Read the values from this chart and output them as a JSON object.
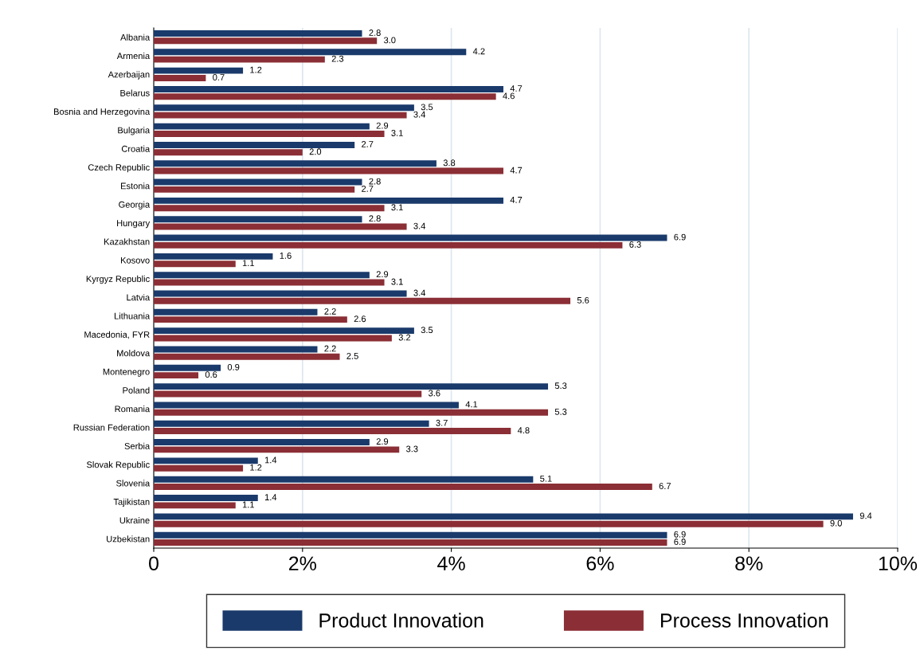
{
  "chart_data": {
    "type": "bar",
    "orientation": "horizontal",
    "categories": [
      "Albania",
      "Armenia",
      "Azerbaijan",
      "Belarus",
      "Bosnia and Herzegovina",
      "Bulgaria",
      "Croatia",
      "Czech Republic",
      "Estonia",
      "Georgia",
      "Hungary",
      "Kazakhstan",
      "Kosovo",
      "Kyrgyz Republic",
      "Latvia",
      "Lithuania",
      "Macedonia, FYR",
      "Moldova",
      "Montenegro",
      "Poland",
      "Romania",
      "Russian Federation",
      "Serbia",
      "Slovak Republic",
      "Slovenia",
      "Tajikistan",
      "Ukraine",
      "Uzbekistan"
    ],
    "series": [
      {
        "name": "Product Innovation",
        "color": "#1a3a6b",
        "values": [
          2.8,
          4.2,
          1.2,
          4.7,
          3.5,
          2.9,
          2.7,
          3.8,
          2.8,
          4.7,
          2.8,
          6.9,
          1.6,
          2.9,
          3.4,
          2.2,
          3.5,
          2.2,
          0.9,
          5.3,
          4.1,
          3.7,
          2.9,
          1.4,
          5.1,
          1.4,
          9.4,
          6.9
        ],
        "value_labels": [
          "2.8",
          "4.2",
          "1.2",
          "4.7",
          "3.5",
          "2.9",
          "2.7",
          "3.8",
          "2.8",
          "4.7",
          "2.8",
          "6.9",
          "1.6",
          "2.9",
          "3.4",
          "2.2",
          "3.5",
          "2.2",
          "0.9",
          "5.3",
          "4.1",
          "3.7",
          "2.9",
          "1.4",
          "5.1",
          "1.4",
          "9.4",
          "6.9"
        ]
      },
      {
        "name": "Process Innovation",
        "color": "#8b2e35",
        "values": [
          3.0,
          2.3,
          0.7,
          4.6,
          3.4,
          3.1,
          2.0,
          4.7,
          2.7,
          3.1,
          3.4,
          6.3,
          1.1,
          3.1,
          5.6,
          2.6,
          3.2,
          2.5,
          0.6,
          3.6,
          5.3,
          4.8,
          3.3,
          1.2,
          6.7,
          1.1,
          9.0,
          6.9
        ],
        "value_labels": [
          "3.0",
          "2.3",
          "0.7",
          "4.6",
          "3.4",
          "3.1",
          "2.0",
          "4.7",
          "2.7",
          "3.1",
          "3.4",
          "6.3",
          "1.1",
          "3.1",
          "5.6",
          "2.6",
          "3.2",
          "2.5",
          "0.6",
          "3.6",
          "5.3",
          "4.8",
          "3.3",
          "1.2",
          "6.7",
          "1.1",
          "9.0",
          "6.9"
        ]
      }
    ],
    "xlim": [
      0,
      10
    ],
    "xticks": [
      0,
      {
        "value": 2,
        "label": "2%"
      },
      {
        "value": 4,
        "label": "4%"
      },
      {
        "value": 6,
        "label": "6%"
      },
      {
        "value": 8,
        "label": "8%"
      },
      {
        "value": 10,
        "label": "10%"
      }
    ],
    "grid": "x",
    "legend": "bottom"
  }
}
